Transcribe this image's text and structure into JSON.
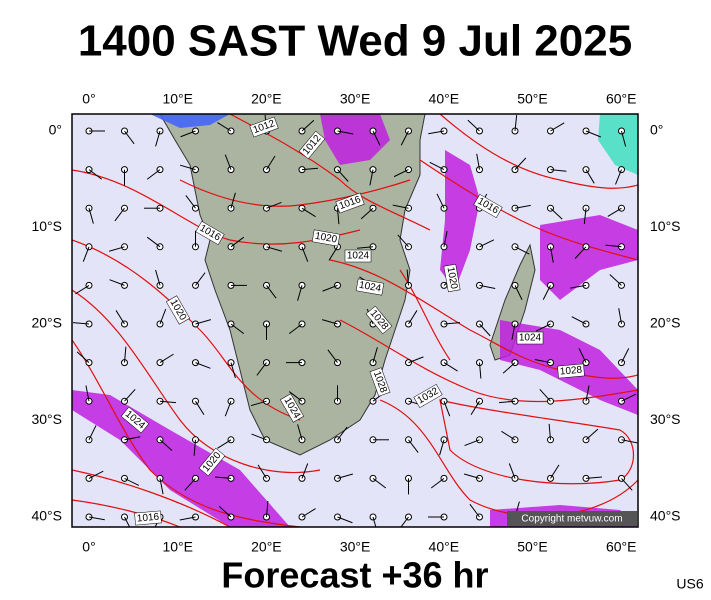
{
  "header": {
    "title": "1400 SAST Wed 9 Jul 2025"
  },
  "axes": {
    "longitudes": [
      "0°",
      "10°E",
      "20°E",
      "30°E",
      "40°E",
      "50°E",
      "60°E"
    ],
    "latitudes": [
      "0°",
      "10°S",
      "20°S",
      "30°S",
      "40°S"
    ]
  },
  "isobar_labels": [
    "1012",
    "1012",
    "1016",
    "1016",
    "1016",
    "1020",
    "1024",
    "1024",
    "1028",
    "1020",
    "1020",
    "1024",
    "1028",
    "1028",
    "1032",
    "1024",
    "1024",
    "1020",
    "1016"
  ],
  "copyright": "Copyright metvuw.com",
  "footer": {
    "forecast": "Forecast +36 hr",
    "code": "US6"
  }
}
